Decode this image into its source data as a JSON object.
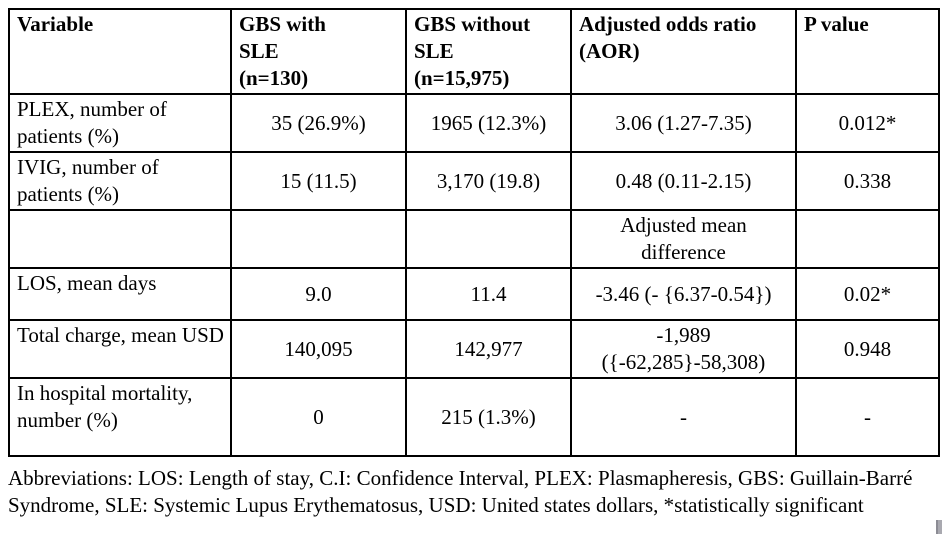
{
  "page": {
    "background_color": "#ffffff",
    "text_color": "#000000",
    "border_color": "#000000"
  },
  "table": {
    "headers": [
      "Variable",
      "GBS with\nSLE\n(n=130)",
      "GBS without\nSLE\n(n=15,975)",
      "Adjusted odds ratio\n(AOR)",
      "P value"
    ],
    "rows": [
      {
        "cells": [
          "PLEX, number of patients (%)",
          "35 (26.9%)",
          "1965 (12.3%)",
          "3.06 (1.27-7.35)",
          "0.012*"
        ]
      },
      {
        "cells": [
          "IVIG, number of patients (%)",
          "15 (11.5)",
          "3,170 (19.8)",
          "0.48 (0.11-2.15)",
          "0.338"
        ]
      },
      {
        "cells": [
          "",
          "",
          "",
          "Adjusted mean difference",
          ""
        ]
      },
      {
        "cells": [
          "LOS, mean days",
          "9.0",
          "11.4",
          "-3.46 (- {6.37-0.54})",
          "0.02*"
        ]
      },
      {
        "cells": [
          "Total charge, mean USD",
          "140,095",
          "142,977",
          "-1,989 ({-62,285}-58,308)",
          "0.948"
        ]
      },
      {
        "cells": [
          "In hospital mortality, number (%)",
          "0",
          "215 (1.3%)",
          "-",
          "-"
        ]
      }
    ]
  },
  "footnote": "Abbreviations: LOS: Length of stay, C.I: Confidence Interval, PLEX: Plasmapheresis, GBS: Guillain-Barré Syndrome, SLE: Systemic Lupus Erythematosus, USD: United states dollars, *statistically significant"
}
